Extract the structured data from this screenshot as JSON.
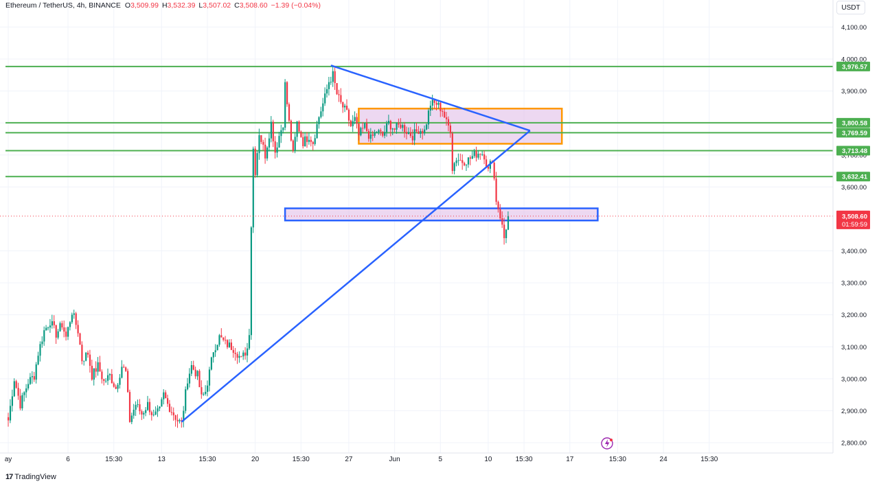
{
  "header": {
    "symbol": "Ethereum / TetherUS, 4h, BINANCE",
    "o_label": "O",
    "o_value": "3,509.99",
    "h_label": "H",
    "h_value": "3,532.39",
    "l_label": "L",
    "l_value": "3,507.02",
    "c_label": "C",
    "c_value": "3,508.60",
    "change": "−1.39 (−0.04%)"
  },
  "unit_button": "USDT",
  "footer": {
    "logo": "17",
    "brand": "TradingView"
  },
  "colors": {
    "up": "#089981",
    "down": "#f23645",
    "level_line": "#4caf50",
    "trend_line": "#2962ff",
    "orange_box": "#ff9800",
    "zone_fill": "#e1bee7"
  },
  "chart_data": {
    "type": "candlestick",
    "ylim": [
      2780,
      4150
    ],
    "y_ticks": [
      {
        "value": 4100,
        "label": "4,100.00"
      },
      {
        "value": 4000,
        "label": "4,000.00"
      },
      {
        "value": 3900,
        "label": "3,900.00"
      },
      {
        "value": 3800,
        "label": "3,800.00"
      },
      {
        "value": 3700,
        "label": "3,700.00"
      },
      {
        "value": 3600,
        "label": "3,600.00"
      },
      {
        "value": 3400,
        "label": "3,400.00"
      },
      {
        "value": 3300,
        "label": "3,300.00"
      },
      {
        "value": 3200,
        "label": "3,200.00"
      },
      {
        "value": 3100,
        "label": "3,100.00"
      },
      {
        "value": 3000,
        "label": "3,000.00"
      },
      {
        "value": 2900,
        "label": "2,900.00"
      },
      {
        "value": 2800,
        "label": "2,800.00"
      }
    ],
    "x_ticks": [
      {
        "index": 0,
        "label": "ay"
      },
      {
        "index": 30,
        "label": "6"
      },
      {
        "index": 53,
        "label": "15:30"
      },
      {
        "index": 77,
        "label": "13"
      },
      {
        "index": 100,
        "label": "15:30"
      },
      {
        "index": 124,
        "label": "20"
      },
      {
        "index": 147,
        "label": "15:30"
      },
      {
        "index": 171,
        "label": "27"
      },
      {
        "index": 194,
        "label": "Jun"
      },
      {
        "index": 217,
        "label": "5"
      },
      {
        "index": 241,
        "label": "10"
      },
      {
        "index": 259,
        "label": "15:30"
      },
      {
        "index": 282,
        "label": "17"
      },
      {
        "index": 306,
        "label": "15:30"
      },
      {
        "index": 329,
        "label": "24"
      },
      {
        "index": 352,
        "label": "15:30"
      }
    ],
    "horizontal_levels": [
      {
        "value": 3976.57,
        "label": "3,976.57"
      },
      {
        "value": 3800.58,
        "label": "3,800.58"
      },
      {
        "value": 3769.59,
        "label": "3,769.59"
      },
      {
        "value": 3713.48,
        "label": "3,713.48"
      },
      {
        "value": 3632.41,
        "label": "3,632.41"
      }
    ],
    "last_price": {
      "value": 3508.6,
      "label": "3,508.60",
      "countdown": "01:59:59"
    },
    "trend_lines": [
      {
        "from": {
          "index": 87,
          "value": 2865
        },
        "to": {
          "index": 262,
          "value": 3776
        }
      },
      {
        "from": {
          "index": 162,
          "value": 3980
        },
        "to": {
          "index": 262,
          "value": 3776
        }
      }
    ],
    "zones": [
      {
        "name": "resistance-box",
        "x_from": 176,
        "x_to": 278,
        "y_from": 3735,
        "y_to": 3845,
        "border": "#ff9800"
      },
      {
        "name": "support-box",
        "x_from": 139,
        "x_to": 296,
        "y_from": 3495,
        "y_to": 3533,
        "border": "#2962ff"
      }
    ],
    "waypoints": [
      [
        0,
        2870
      ],
      [
        3,
        3000
      ],
      [
        6,
        2920
      ],
      [
        10,
        2990
      ],
      [
        13,
        3010
      ],
      [
        15,
        3080
      ],
      [
        18,
        3150
      ],
      [
        21,
        3180
      ],
      [
        24,
        3140
      ],
      [
        27,
        3170
      ],
      [
        29,
        3130
      ],
      [
        32,
        3210
      ],
      [
        35,
        3150
      ],
      [
        37,
        3060
      ],
      [
        40,
        3080
      ],
      [
        42,
        3010
      ],
      [
        45,
        3040
      ],
      [
        48,
        2990
      ],
      [
        51,
        3010
      ],
      [
        54,
        2970
      ],
      [
        57,
        3040
      ],
      [
        59,
        3020
      ],
      [
        61,
        2870
      ],
      [
        64,
        2920
      ],
      [
        67,
        2890
      ],
      [
        70,
        2920
      ],
      [
        73,
        2880
      ],
      [
        76,
        2900
      ],
      [
        78,
        2950
      ],
      [
        80,
        2920
      ],
      [
        83,
        2890
      ],
      [
        85,
        2870
      ],
      [
        87,
        2860
      ],
      [
        90,
        3000
      ],
      [
        92,
        3040
      ],
      [
        95,
        3010
      ],
      [
        97,
        2940
      ],
      [
        99,
        2960
      ],
      [
        101,
        3020
      ],
      [
        103,
        3090
      ],
      [
        106,
        3130
      ],
      [
        109,
        3110
      ],
      [
        112,
        3100
      ],
      [
        114,
        3090
      ],
      [
        117,
        3060
      ],
      [
        120,
        3095
      ],
      [
        121,
        3150
      ],
      [
        122,
        3480
      ],
      [
        123,
        3720
      ],
      [
        124,
        3650
      ],
      [
        126,
        3770
      ],
      [
        129,
        3700
      ],
      [
        132,
        3800
      ],
      [
        134,
        3710
      ],
      [
        136,
        3760
      ],
      [
        138,
        3800
      ],
      [
        139,
        3920
      ],
      [
        141,
        3800
      ],
      [
        143,
        3700
      ],
      [
        145,
        3800
      ],
      [
        148,
        3740
      ],
      [
        151,
        3760
      ],
      [
        153,
        3740
      ],
      [
        156,
        3820
      ],
      [
        159,
        3880
      ],
      [
        161,
        3930
      ],
      [
        163,
        3950
      ],
      [
        165,
        3890
      ],
      [
        167,
        3860
      ],
      [
        170,
        3830
      ],
      [
        172,
        3790
      ],
      [
        174,
        3810
      ],
      [
        176,
        3760
      ],
      [
        179,
        3790
      ],
      [
        182,
        3750
      ],
      [
        185,
        3775
      ],
      [
        188,
        3760
      ],
      [
        191,
        3800
      ],
      [
        194,
        3780
      ],
      [
        197,
        3795
      ],
      [
        200,
        3775
      ],
      [
        203,
        3760
      ],
      [
        206,
        3780
      ],
      [
        209,
        3775
      ],
      [
        212,
        3860
      ],
      [
        215,
        3860
      ],
      [
        218,
        3840
      ],
      [
        220,
        3800
      ],
      [
        222,
        3780
      ],
      [
        223,
        3660
      ],
      [
        225,
        3690
      ],
      [
        228,
        3680
      ],
      [
        231,
        3685
      ],
      [
        234,
        3700
      ],
      [
        237,
        3710
      ],
      [
        239,
        3700
      ],
      [
        241,
        3650
      ],
      [
        243,
        3690
      ],
      [
        245,
        3560
      ],
      [
        247,
        3510
      ],
      [
        249,
        3440
      ],
      [
        251,
        3508.6
      ]
    ]
  }
}
